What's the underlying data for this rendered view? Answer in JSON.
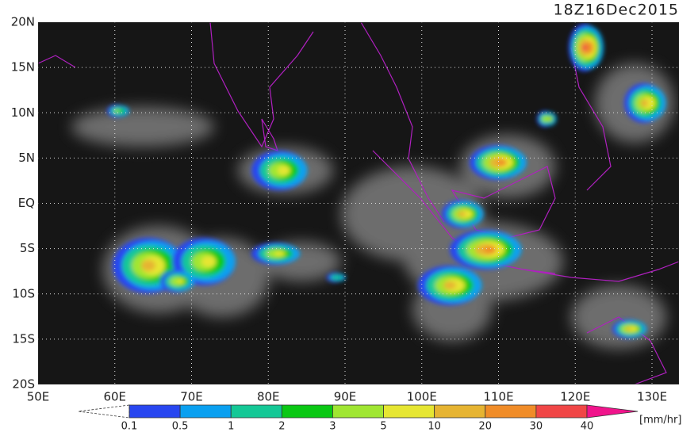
{
  "title": "18Z16Dec2015",
  "lat_labels": [
    "20N",
    "15N",
    "10N",
    "5N",
    "EQ",
    "5S",
    "10S",
    "15S",
    "20S"
  ],
  "lon_labels": [
    "50E",
    "60E",
    "70E",
    "80E",
    "90E",
    "100E",
    "110E",
    "120E",
    "130E"
  ],
  "colorbar": {
    "labels": [
      "0.1",
      "0.5",
      "1",
      "2",
      "3",
      "5",
      "10",
      "20",
      "30",
      "40"
    ],
    "unit": "[mm/hr]",
    "colors": [
      "#2846f0",
      "#0aa0f0",
      "#14c896",
      "#0ac814",
      "#a0e632",
      "#e6e632",
      "#e6b432",
      "#f08c28",
      "#f04646",
      "#f0148c"
    ]
  }
}
